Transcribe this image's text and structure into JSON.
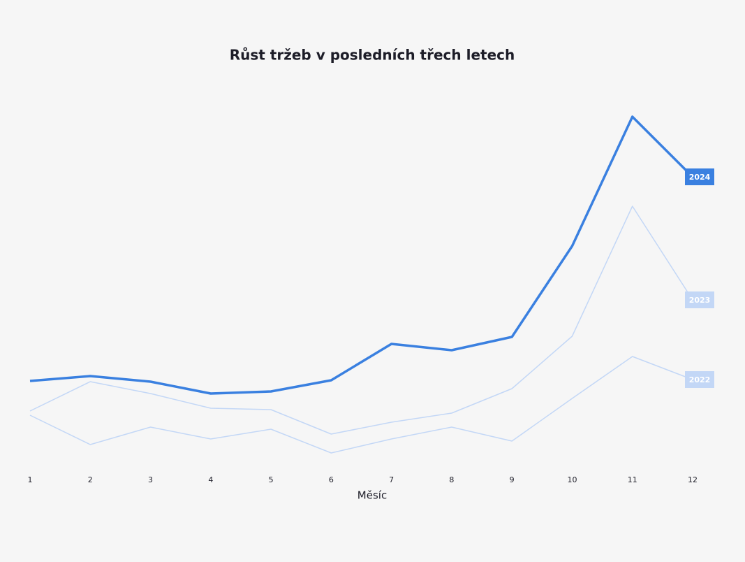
{
  "chart_data": {
    "type": "line",
    "title": "Růst tržeb v posledních třech letech",
    "x_label": "Měsíc",
    "categories": [
      "1",
      "2",
      "3",
      "4",
      "5",
      "6",
      "7",
      "8",
      "9",
      "10",
      "11",
      "12"
    ],
    "ylim": [
      0,
      100
    ],
    "series": [
      {
        "name": "2022",
        "color": "#c3d7f6",
        "width": 1.5,
        "values": [
          13.2,
          4.8,
          9.8,
          6.4,
          9.2,
          2.4,
          6.4,
          9.8,
          5.8,
          18,
          30,
          23.4
        ]
      },
      {
        "name": "2023",
        "color": "#c3d7f6",
        "width": 1.5,
        "values": [
          14.4,
          22.8,
          19.4,
          15.2,
          14.8,
          7.8,
          11.2,
          13.8,
          20.8,
          35.8,
          73,
          46.2
        ]
      },
      {
        "name": "2024",
        "color": "#3a80e0",
        "width": 3.5,
        "values": [
          23,
          24.4,
          22.8,
          19.4,
          20,
          23.2,
          33.6,
          31.8,
          35.6,
          61.6,
          98.6,
          81.4
        ]
      }
    ]
  }
}
